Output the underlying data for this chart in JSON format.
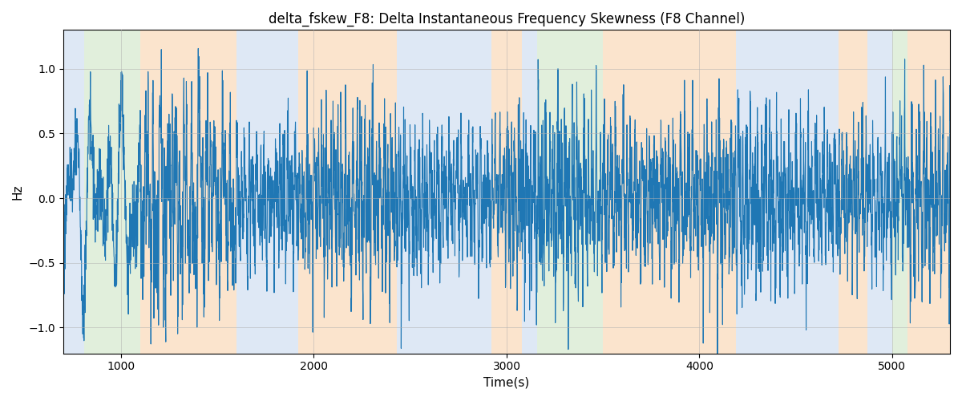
{
  "title": "delta_fskew_F8: Delta Instantaneous Frequency Skewness (F8 Channel)",
  "xlabel": "Time(s)",
  "ylabel": "Hz",
  "xlim": [
    700,
    5300
  ],
  "ylim": [
    -1.2,
    1.3
  ],
  "background_bands": [
    {
      "xmin": 700,
      "xmax": 810,
      "color": "#aec6e8",
      "alpha": 0.4
    },
    {
      "xmin": 810,
      "xmax": 1100,
      "color": "#b6d7a8",
      "alpha": 0.4
    },
    {
      "xmin": 1100,
      "xmax": 1600,
      "color": "#f9cb9c",
      "alpha": 0.5
    },
    {
      "xmin": 1600,
      "xmax": 1920,
      "color": "#aec6e8",
      "alpha": 0.4
    },
    {
      "xmin": 1920,
      "xmax": 2430,
      "color": "#f9cb9c",
      "alpha": 0.5
    },
    {
      "xmin": 2430,
      "xmax": 2920,
      "color": "#aec6e8",
      "alpha": 0.4
    },
    {
      "xmin": 2920,
      "xmax": 3080,
      "color": "#f9cb9c",
      "alpha": 0.5
    },
    {
      "xmin": 3080,
      "xmax": 3160,
      "color": "#aec6e8",
      "alpha": 0.4
    },
    {
      "xmin": 3160,
      "xmax": 3500,
      "color": "#b6d7a8",
      "alpha": 0.4
    },
    {
      "xmin": 3500,
      "xmax": 4190,
      "color": "#f9cb9c",
      "alpha": 0.5
    },
    {
      "xmin": 4190,
      "xmax": 4720,
      "color": "#aec6e8",
      "alpha": 0.4
    },
    {
      "xmin": 4720,
      "xmax": 4870,
      "color": "#f9cb9c",
      "alpha": 0.5
    },
    {
      "xmin": 4870,
      "xmax": 5000,
      "color": "#aec6e8",
      "alpha": 0.4
    },
    {
      "xmin": 5000,
      "xmax": 5080,
      "color": "#b6d7a8",
      "alpha": 0.4
    },
    {
      "xmin": 5080,
      "xmax": 5300,
      "color": "#f9cb9c",
      "alpha": 0.5
    }
  ],
  "line_color": "#1f77b4",
  "line_width": 0.8,
  "grid_color": "#b0b0b0",
  "grid_alpha": 0.7,
  "grid_linewidth": 0.5,
  "title_fontsize": 12,
  "label_fontsize": 11,
  "tick_fontsize": 10,
  "figsize": [
    12.0,
    5.0
  ],
  "dpi": 100
}
